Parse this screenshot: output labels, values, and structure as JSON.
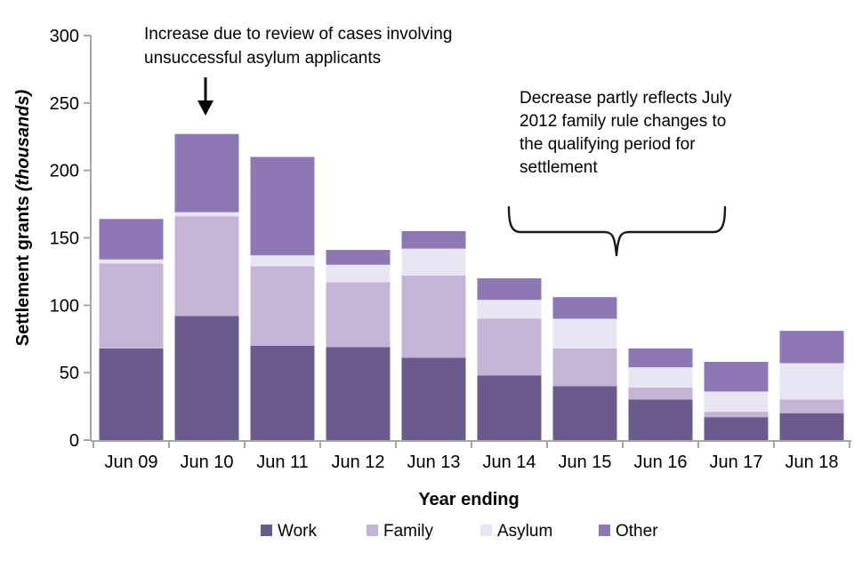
{
  "figure": {
    "y_axis_title_main": "Settlement grants",
    "y_axis_title_italic": "(thousands)",
    "x_axis_title": "Year ending"
  },
  "chart_data": {
    "type": "bar",
    "stacked": true,
    "title": "",
    "ylabel": "Settlement grants (thousands)",
    "xlabel": "Year ending",
    "ylim": [
      0,
      300
    ],
    "yticks": [
      0,
      50,
      100,
      150,
      200,
      250,
      300
    ],
    "grid": false,
    "legend_position": "bottom",
    "axis_color": "#a6a6a6",
    "text_color": "#000000",
    "categories": [
      "Jun 09",
      "Jun 10",
      "Jun 11",
      "Jun 12",
      "Jun 13",
      "Jun 14",
      "Jun 15",
      "Jun 16",
      "Jun 17",
      "Jun 18"
    ],
    "series": [
      {
        "name": "Work",
        "color": "#6b5a8c",
        "values": [
          68,
          92,
          70,
          69,
          61,
          48,
          40,
          30,
          17,
          20
        ]
      },
      {
        "name": "Family",
        "color": "#c4b4d6",
        "values": [
          63,
          74,
          59,
          48,
          61,
          42,
          28,
          9,
          4,
          10
        ]
      },
      {
        "name": "Asylum",
        "color": "#e9e5f2",
        "values": [
          3,
          3,
          8,
          13,
          20,
          14,
          22,
          15,
          15,
          27
        ]
      },
      {
        "name": "Other",
        "color": "#8d78b4",
        "values": [
          30,
          58,
          73,
          11,
          13,
          16,
          16,
          14,
          22,
          24
        ]
      }
    ],
    "totals": [
      164,
      227,
      210,
      141,
      155,
      120,
      106,
      68,
      58,
      81
    ],
    "annotations": [
      {
        "id": "increase-note",
        "lines": [
          "Increase due to review of cases involving",
          "unsuccessful asylum applicants"
        ],
        "points_to": "Jun 10"
      },
      {
        "id": "decrease-note",
        "lines": [
          "Decrease partly reflects July",
          "2012 family rule changes to",
          "the qualifying period for",
          "settlement"
        ],
        "brace_span": [
          "Jun 14",
          "Jun 16"
        ]
      }
    ]
  }
}
